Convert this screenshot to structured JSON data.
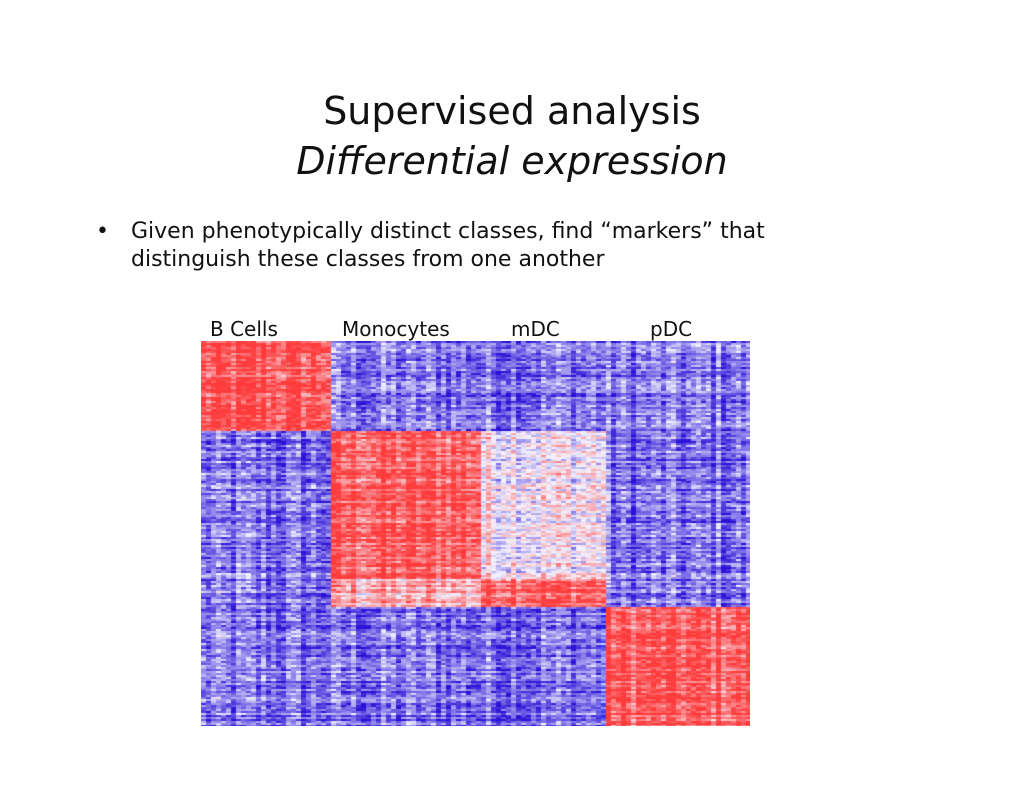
{
  "slide": {
    "title": "Supervised analysis",
    "subtitle": "Differential expression",
    "bullet_symbol": "•",
    "bullet_text": "Given phenotypically distinct classes, find “markers” that distinguish these classes from one another"
  },
  "heatmap": {
    "column_groups": [
      "B Cells",
      "Monocytes",
      "mDC",
      "pDC"
    ],
    "colors": {
      "high": "#ff3b3b",
      "mid": "#f4f4ff",
      "low": "#2a12d6"
    }
  }
}
